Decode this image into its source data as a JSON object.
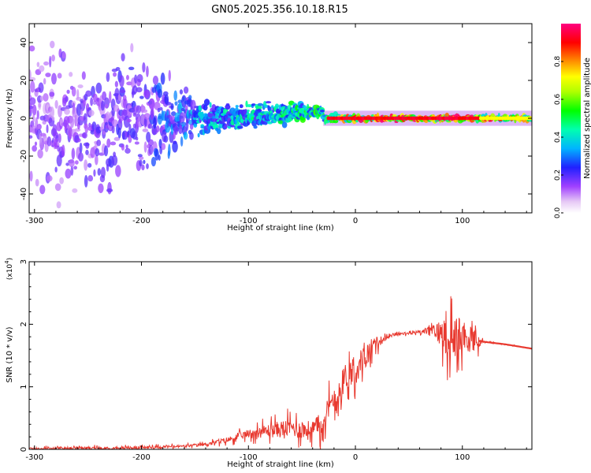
{
  "title": "GN05.2025.356.10.18.R15",
  "chart_data": [
    {
      "type": "heatmap",
      "title": "GN05.2025.356.10.18.R15",
      "xlabel": "Height of straight line (km)",
      "ylabel": "Frequency (Hz)",
      "xlim": [
        -305,
        165
      ],
      "ylim": [
        -50,
        50
      ],
      "x_ticks": [
        -300,
        -200,
        -100,
        0,
        100
      ],
      "y_ticks": [
        -40,
        -20,
        0,
        20,
        40
      ],
      "colorbar": {
        "label": "Normalized spectral amplitude",
        "range": [
          0,
          1
        ],
        "ticks": [
          "0.0",
          "0.2",
          "0.4",
          "0.6",
          "0.8"
        ]
      },
      "description_points": [
        {
          "x": -300,
          "spread": 45,
          "amp": 0.15
        },
        {
          "x": -200,
          "spread": 40,
          "amp": 0.2
        },
        {
          "x": -150,
          "spread": 12,
          "amp": 0.35
        },
        {
          "x": -100,
          "spread": 9,
          "amp": 0.4
        },
        {
          "x": -60,
          "spread": 8,
          "amp": 0.45
        },
        {
          "x": -30,
          "spread": 3,
          "amp": 0.5
        },
        {
          "x": 0,
          "spread": 2,
          "amp": 0.85
        },
        {
          "x": 50,
          "spread": 2,
          "amp": 0.9
        },
        {
          "x": 100,
          "spread": 2,
          "amp": 0.9
        },
        {
          "x": 160,
          "spread": 2,
          "amp": 0.7
        }
      ]
    },
    {
      "type": "line",
      "xlabel": "Height of straight line (km)",
      "ylabel": "SNR (10 * v/v)",
      "y_multiplier": "(x10",
      "y_multiplier_exp": "4",
      "xlim": [
        -305,
        165
      ],
      "ylim": [
        0,
        3
      ],
      "x_ticks": [
        -300,
        -200,
        -100,
        0,
        100
      ],
      "y_ticks": [
        0,
        1,
        2,
        3
      ],
      "color": "#e8392f",
      "series": [
        {
          "name": "SNR",
          "x": [
            -305,
            -250,
            -200,
            -160,
            -140,
            -120,
            -100,
            -80,
            -60,
            -45,
            -35,
            -25,
            -15,
            -8,
            0,
            10,
            20,
            30,
            40,
            50,
            60,
            70,
            80,
            90,
            100,
            110,
            120,
            140,
            165
          ],
          "y": [
            0.01,
            0.02,
            0.03,
            0.05,
            0.08,
            0.15,
            0.25,
            0.3,
            0.35,
            0.3,
            0.35,
            0.6,
            0.9,
            1.2,
            1.3,
            1.5,
            1.7,
            1.8,
            1.85,
            1.85,
            1.88,
            1.9,
            1.85,
            1.8,
            1.75,
            1.75,
            1.72,
            1.68,
            1.61
          ]
        }
      ],
      "noise_amplitude": [
        {
          "x": -140,
          "amp": 0.05
        },
        {
          "x": -100,
          "amp": 0.15
        },
        {
          "x": -70,
          "amp": 0.3
        },
        {
          "x": -40,
          "amp": 0.35
        },
        {
          "x": -20,
          "amp": 0.6
        },
        {
          "x": 0,
          "amp": 0.5
        },
        {
          "x": 10,
          "amp": 0.4
        },
        {
          "x": 30,
          "amp": 0.05
        },
        {
          "x": 60,
          "amp": 0.05
        },
        {
          "x": 75,
          "amp": 0.3
        },
        {
          "x": 90,
          "amp": 0.9
        },
        {
          "x": 100,
          "amp": 0.6
        },
        {
          "x": 115,
          "amp": 0.3
        },
        {
          "x": 120,
          "amp": 0.02
        },
        {
          "x": 165,
          "amp": 0.01
        }
      ]
    }
  ]
}
